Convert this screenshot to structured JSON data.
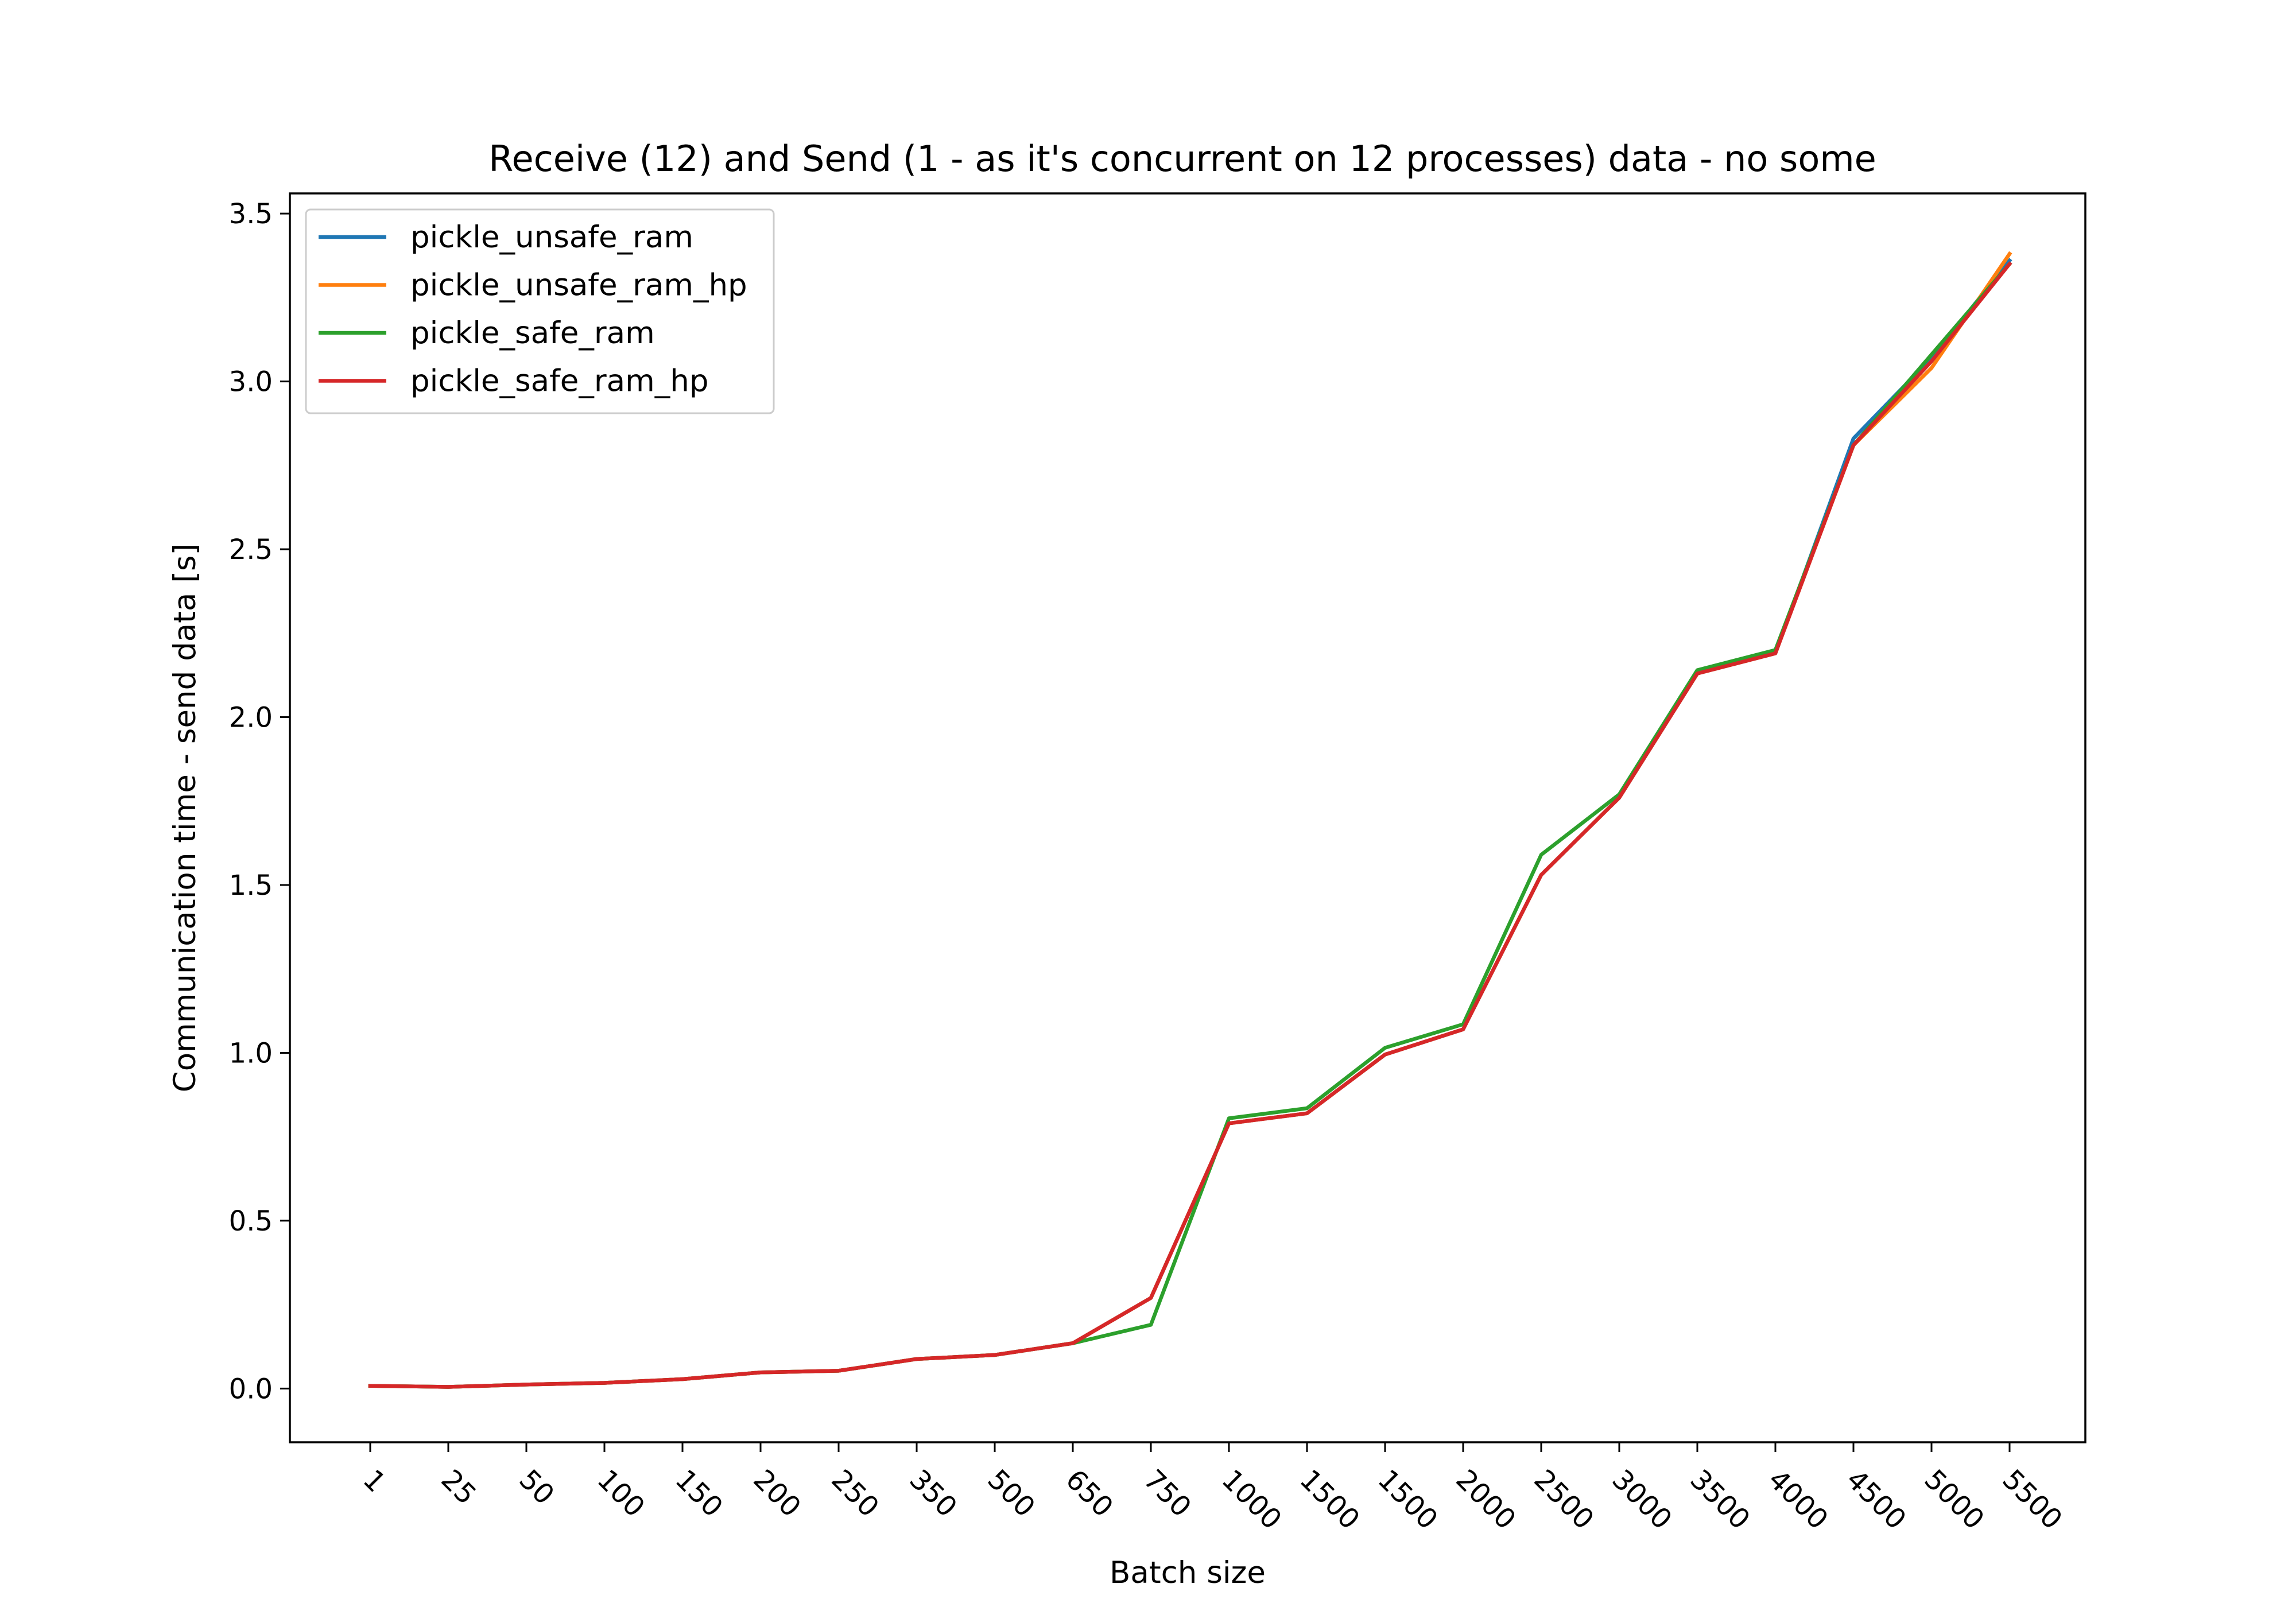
{
  "chart_data": {
    "type": "line",
    "title": "Receive (12) and Send (1 - as it's concurrent on 12 processes) data - no some",
    "xlabel": "Batch size",
    "ylabel": "Communication time - send data [s]",
    "categories": [
      "1",
      "25",
      "50",
      "100",
      "150",
      "200",
      "250",
      "350",
      "500",
      "650",
      "750",
      "1000",
      "1500",
      "1500",
      "2000",
      "2500",
      "3000",
      "3500",
      "4000",
      "4500",
      "5000",
      "5500"
    ],
    "ylim": [
      -0.16,
      3.56
    ],
    "yticks": [
      "0.0",
      "0.5",
      "1.0",
      "1.5",
      "2.0",
      "2.5",
      "3.0",
      "3.5"
    ],
    "ytick_values": [
      0.0,
      0.5,
      1.0,
      1.5,
      2.0,
      2.5,
      3.0,
      3.5
    ],
    "grid": false,
    "legend_position": "top-left",
    "series": [
      {
        "name": "pickle_unsafe_ram",
        "color": "#1f77b4",
        "values": [
          0.008,
          0.005,
          0.012,
          0.017,
          0.028,
          0.048,
          0.053,
          0.088,
          0.1,
          0.135,
          0.27,
          0.79,
          0.82,
          0.995,
          1.07,
          1.53,
          1.76,
          2.13,
          2.19,
          2.83,
          3.07,
          3.36
        ]
      },
      {
        "name": "pickle_unsafe_ram_hp",
        "color": "#ff7f0e",
        "values": [
          0.008,
          0.005,
          0.012,
          0.017,
          0.028,
          0.048,
          0.053,
          0.088,
          0.1,
          0.135,
          0.27,
          0.79,
          0.82,
          0.995,
          1.07,
          1.53,
          1.76,
          2.13,
          2.19,
          2.81,
          3.04,
          3.38
        ]
      },
      {
        "name": "pickle_safe_ram",
        "color": "#2ca02c",
        "values": [
          0.008,
          0.005,
          0.012,
          0.017,
          0.028,
          0.048,
          0.053,
          0.088,
          0.1,
          0.135,
          0.19,
          0.805,
          0.835,
          1.015,
          1.085,
          1.59,
          1.77,
          2.14,
          2.2,
          2.81,
          3.08,
          3.35
        ]
      },
      {
        "name": "pickle_safe_ram_hp",
        "color": "#d62728",
        "values": [
          0.008,
          0.005,
          0.012,
          0.017,
          0.028,
          0.048,
          0.053,
          0.088,
          0.1,
          0.135,
          0.27,
          0.79,
          0.82,
          0.995,
          1.07,
          1.53,
          1.76,
          2.13,
          2.19,
          2.81,
          3.06,
          3.35
        ]
      }
    ]
  }
}
